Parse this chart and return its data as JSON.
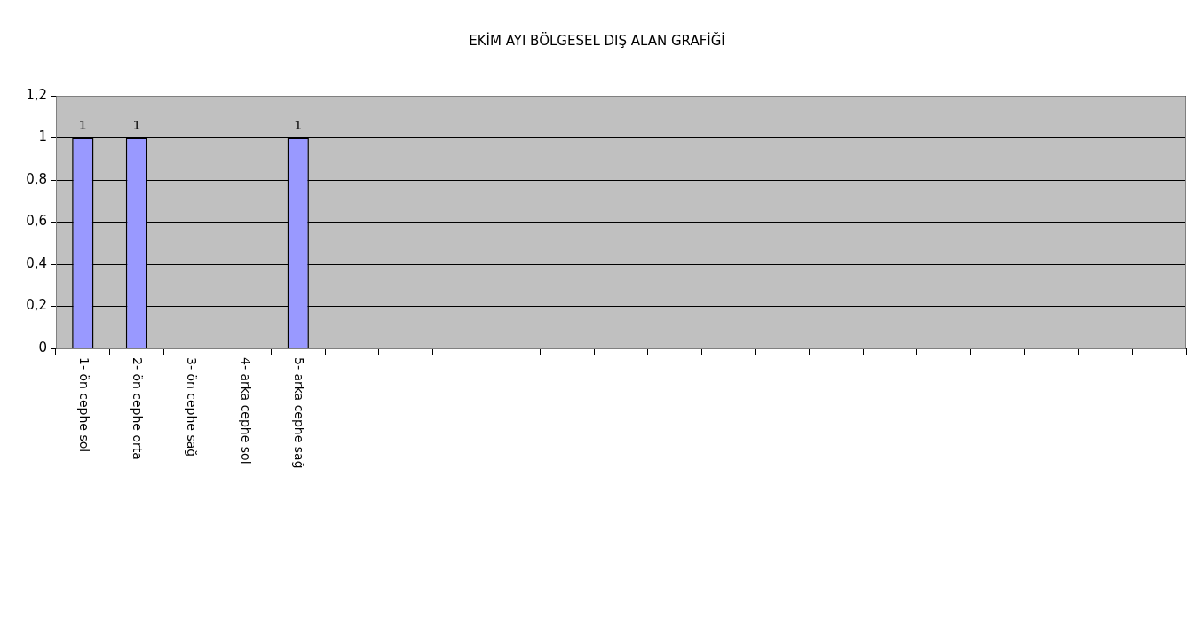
{
  "chart_data": {
    "type": "bar",
    "title": "EKİM AYI BÖLGESEL DIŞ ALAN GRAFİĞİ",
    "categories": [
      "1- ön cephe sol",
      "2- ön cephe orta",
      "3- ön cephe sağ",
      "4- arka cephe sol",
      "5- arka cephe sağ",
      null,
      null,
      null,
      null,
      null,
      null,
      null,
      null,
      null,
      null,
      null,
      null,
      null,
      null,
      null,
      null
    ],
    "values": [
      1,
      1,
      0,
      0,
      1,
      null,
      null,
      null,
      null,
      null,
      null,
      null,
      null,
      null,
      null,
      null,
      null,
      null,
      null,
      null,
      null
    ],
    "value_labels": [
      "1",
      "1",
      null,
      null,
      "1",
      null,
      null,
      null,
      null,
      null,
      null,
      null,
      null,
      null,
      null,
      null,
      null,
      null,
      null,
      null,
      null
    ],
    "color": "#9999ff",
    "ylim": [
      0,
      1.2
    ],
    "yticks": [
      {
        "value": 0,
        "label": "0"
      },
      {
        "value": 0.2,
        "label": "0,2"
      },
      {
        "value": 0.4,
        "label": "0,4"
      },
      {
        "value": 0.6,
        "label": "0,6"
      },
      {
        "value": 0.8,
        "label": "0,8"
      },
      {
        "value": 1,
        "label": "1"
      },
      {
        "value": 1.2,
        "label": "1,2"
      }
    ],
    "grid": "y",
    "legend": false
  }
}
